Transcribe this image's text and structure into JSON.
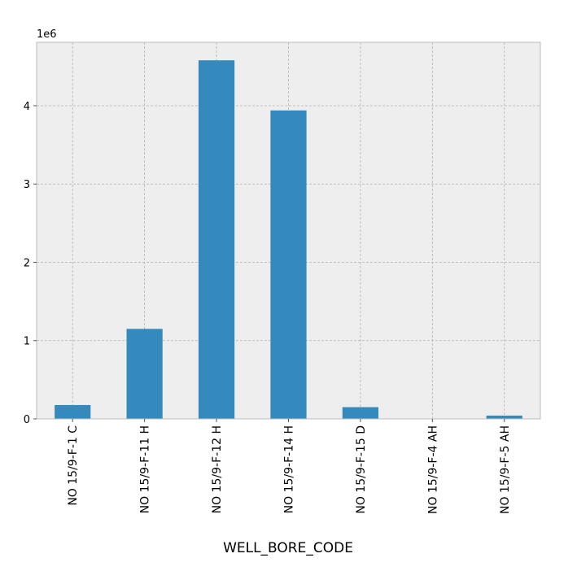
{
  "chart_data": {
    "type": "bar",
    "title": "",
    "xlabel": "WELL_BORE_CODE",
    "ylabel": "",
    "y_scale_label": "1e6",
    "y_multiplier": 1000000,
    "categories": [
      "NO 15/9-F-1 C",
      "NO 15/9-F-11 H",
      "NO 15/9-F-12 H",
      "NO 15/9-F-14 H",
      "NO 15/9-F-15 D",
      "NO 15/9-F-4 AH",
      "NO 15/9-F-5 AH"
    ],
    "values": [
      177000,
      1150000,
      4580000,
      3940000,
      150000,
      0,
      42000
    ],
    "ylim": [
      0,
      4810000
    ],
    "yticks": [
      0,
      1,
      2,
      3,
      4
    ],
    "grid": true,
    "legend": "none",
    "colors": {
      "bar": "#348ABD",
      "plot_background": "#EEEEEE",
      "grid": "#B2B2B2",
      "frame": "#BCBCBC"
    }
  }
}
